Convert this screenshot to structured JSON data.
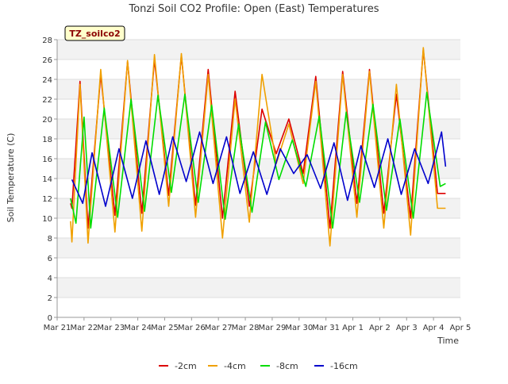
{
  "chart_data": {
    "type": "line",
    "title": "Tonzi Soil CO2 Profile: Open (East) Temperatures",
    "site_label": "TZ_soilco2",
    "xlabel": "Time",
    "ylabel": "Soil Temperature (C)",
    "ylim": [
      0,
      28
    ],
    "y_ticks": [
      0,
      2,
      4,
      6,
      8,
      10,
      12,
      14,
      16,
      18,
      20,
      22,
      24,
      26,
      28
    ],
    "x_ticks": [
      "Mar 21",
      "Mar 22",
      "Mar 23",
      "Mar 24",
      "Mar 25",
      "Mar 26",
      "Mar 27",
      "Mar 28",
      "Mar 29",
      "Mar 30",
      "Mar 31",
      "Apr 1",
      "Apr 2",
      "Apr 3",
      "Apr 4",
      "Apr 5"
    ],
    "x_range_days": [
      0,
      15
    ],
    "grid": "horizontal bands",
    "legend_position": "bottom",
    "series": [
      {
        "name": "-2cm",
        "color": "#dd0000",
        "days": [
          0.5,
          0.55,
          0.85,
          1.15,
          1.62,
          2.15,
          2.62,
          3.15,
          3.62,
          4.15,
          4.62,
          5.15,
          5.62,
          6.15,
          6.62,
          7.15,
          7.62,
          8.15,
          8.62,
          9.15,
          9.62,
          10.15,
          10.62,
          11.15,
          11.62,
          12.15,
          12.62,
          13.15,
          13.62,
          14.15,
          14.45
        ],
        "values": [
          11.5,
          11.0,
          23.8,
          9.0,
          24.5,
          10.3,
          25.8,
          10.5,
          26.0,
          12.3,
          26.4,
          11.3,
          25.0,
          10.0,
          22.8,
          11.2,
          21.0,
          16.5,
          20.0,
          14.5,
          24.3,
          9.0,
          24.8,
          11.5,
          25.0,
          10.5,
          22.5,
          10.0,
          27.0,
          12.5,
          12.5
        ]
      },
      {
        "name": "-4cm",
        "color": "#f0a000",
        "days": [
          0.5,
          0.55,
          0.85,
          1.15,
          1.62,
          2.15,
          2.62,
          3.15,
          3.62,
          4.15,
          4.62,
          5.15,
          5.62,
          6.15,
          6.62,
          7.15,
          7.62,
          8.15,
          8.62,
          9.15,
          9.62,
          10.15,
          10.62,
          11.15,
          11.62,
          12.15,
          12.62,
          13.15,
          13.62,
          14.15,
          14.45
        ],
        "values": [
          9.7,
          7.6,
          23.5,
          7.5,
          25.0,
          8.6,
          25.9,
          8.7,
          26.5,
          11.2,
          26.6,
          10.1,
          24.5,
          8.0,
          22.0,
          9.6,
          24.5,
          15.5,
          19.5,
          13.5,
          23.8,
          7.2,
          24.5,
          10.1,
          24.8,
          9.0,
          23.5,
          8.3,
          27.2,
          11.0,
          11.0
        ]
      },
      {
        "name": "-8cm",
        "color": "#00dd00",
        "days": [
          0.5,
          0.7,
          1.0,
          1.25,
          1.75,
          2.25,
          2.75,
          3.25,
          3.75,
          4.25,
          4.75,
          5.25,
          5.75,
          6.25,
          6.75,
          7.25,
          7.75,
          8.25,
          8.75,
          9.25,
          9.75,
          10.25,
          10.75,
          11.25,
          11.75,
          12.25,
          12.75,
          13.25,
          13.75,
          14.25,
          14.45
        ],
        "values": [
          12.0,
          9.5,
          20.2,
          9.0,
          21.1,
          10.1,
          22.0,
          10.7,
          22.4,
          12.6,
          22.5,
          11.6,
          21.4,
          9.9,
          19.5,
          10.6,
          19.7,
          13.9,
          17.9,
          13.2,
          20.3,
          9.0,
          20.7,
          11.6,
          21.5,
          10.8,
          20.0,
          10.0,
          22.7,
          13.2,
          13.5
        ]
      },
      {
        "name": "-16cm",
        "color": "#0000cc",
        "days": [
          0.55,
          0.95,
          1.3,
          1.8,
          2.3,
          2.8,
          3.3,
          3.8,
          4.3,
          4.8,
          5.3,
          5.8,
          6.3,
          6.8,
          7.3,
          7.8,
          8.3,
          8.8,
          9.3,
          9.8,
          10.3,
          10.8,
          11.3,
          11.8,
          12.3,
          12.8,
          13.3,
          13.8,
          14.3,
          14.45
        ],
        "values": [
          13.9,
          11.5,
          16.6,
          11.2,
          17.0,
          12.0,
          17.8,
          12.4,
          18.2,
          13.7,
          18.7,
          13.5,
          18.2,
          12.5,
          16.7,
          12.4,
          17.0,
          14.5,
          16.4,
          13.0,
          17.6,
          11.8,
          17.3,
          13.1,
          18.0,
          12.4,
          17.0,
          13.5,
          18.7,
          15.2
        ]
      }
    ]
  }
}
